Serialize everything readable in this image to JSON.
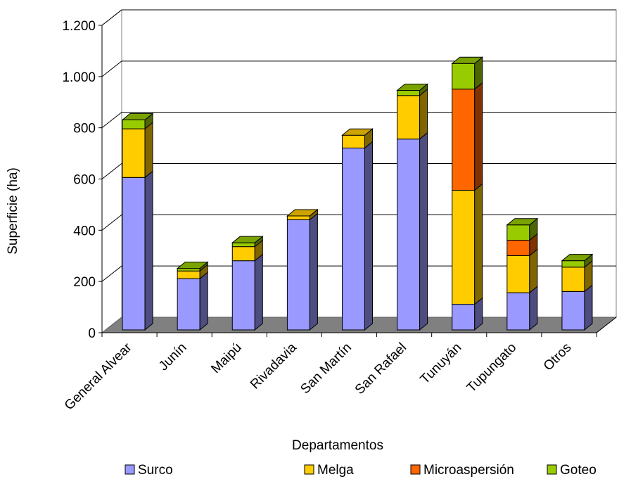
{
  "chart_data": {
    "type": "bar",
    "stacked": true,
    "style": "3d",
    "xlabel": "Departamentos",
    "ylabel": "Superficie (ha)",
    "ylim": [
      0,
      1200
    ],
    "yticks": [
      0,
      200,
      400,
      600,
      800,
      1000,
      1200
    ],
    "ytick_labels": [
      "0",
      "200",
      "400",
      "600",
      "800",
      "1.000",
      "1.200"
    ],
    "grid": true,
    "legend_position": "bottom",
    "categories": [
      "General Alvear",
      "Junín",
      "Maipú",
      "Rivadavia",
      "San Martín",
      "San Rafael",
      "Tunuyán",
      "Tupungato",
      "Otros"
    ],
    "series": [
      {
        "name": "Surco",
        "color": "#9999FF",
        "values": [
          595,
          200,
          270,
          430,
          710,
          745,
          100,
          145,
          150
        ]
      },
      {
        "name": "Melga",
        "color": "#FFCC00",
        "values": [
          190,
          30,
          55,
          15,
          50,
          170,
          445,
          145,
          95
        ]
      },
      {
        "name": "Microaspersión",
        "color": "#FF6600",
        "values": [
          0,
          0,
          0,
          0,
          0,
          0,
          395,
          60,
          0
        ]
      },
      {
        "name": "Goteo",
        "color": "#99CC00",
        "values": [
          35,
          10,
          15,
          0,
          0,
          20,
          100,
          60,
          25
        ]
      }
    ]
  }
}
